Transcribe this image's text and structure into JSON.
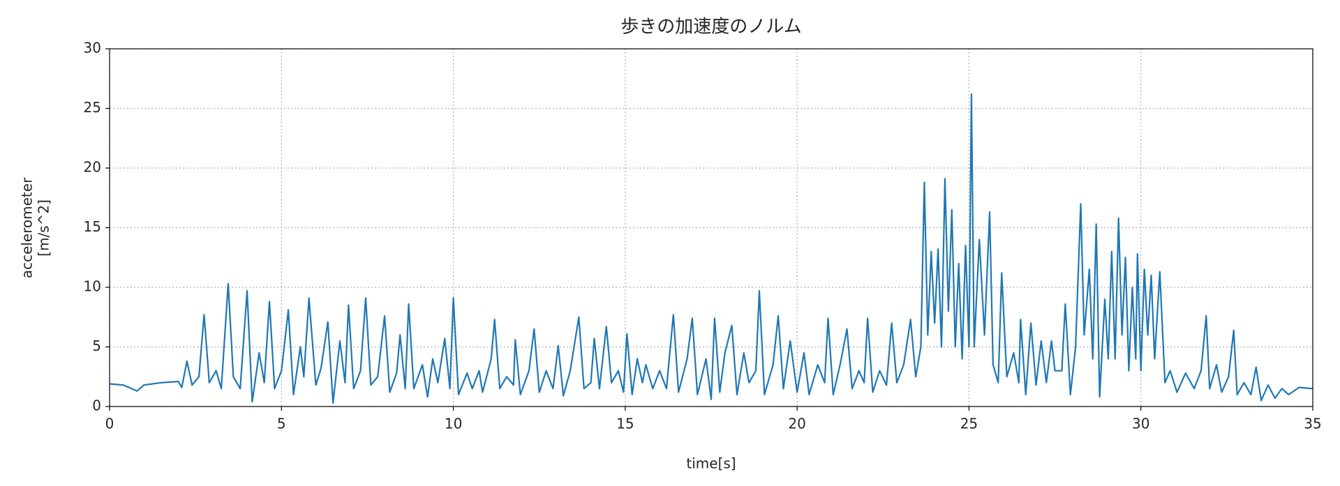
{
  "chart_data": {
    "type": "line",
    "title": "歩きの加速度のノルム",
    "xlabel": "time[s]",
    "ylabel": [
      "accelerometer",
      "[m/s^2]"
    ],
    "xlim": [
      0,
      35
    ],
    "xticks": [
      0,
      5,
      10,
      15,
      20,
      25,
      30,
      35
    ],
    "ylim": [
      0,
      30
    ],
    "yticks": [
      0,
      5,
      10,
      15,
      20,
      25,
      30
    ],
    "grid": true,
    "series": [
      {
        "color": "#1f77b4",
        "x": [
          0,
          0.4,
          0.8,
          1.0,
          1.5,
          2.0,
          2.1,
          2.25,
          2.4,
          2.6,
          2.75,
          2.9,
          3.1,
          3.25,
          3.45,
          3.6,
          3.8,
          4.0,
          4.15,
          4.35,
          4.5,
          4.65,
          4.8,
          5.0,
          5.2,
          5.35,
          5.55,
          5.65,
          5.8,
          6.0,
          6.15,
          6.35,
          6.5,
          6.7,
          6.85,
          6.95,
          7.1,
          7.3,
          7.45,
          7.6,
          7.8,
          8.0,
          8.15,
          8.35,
          8.45,
          8.6,
          8.7,
          8.85,
          9.1,
          9.25,
          9.4,
          9.55,
          9.75,
          9.9,
          10.0,
          10.15,
          10.4,
          10.55,
          10.75,
          10.85,
          11.1,
          11.2,
          11.35,
          11.55,
          11.75,
          11.8,
          11.95,
          12.2,
          12.35,
          12.5,
          12.7,
          12.9,
          13.05,
          13.2,
          13.4,
          13.65,
          13.8,
          14.0,
          14.1,
          14.25,
          14.45,
          14.6,
          14.8,
          14.95,
          15.05,
          15.2,
          15.35,
          15.5,
          15.6,
          15.8,
          16.0,
          16.2,
          16.4,
          16.55,
          16.8,
          16.95,
          17.1,
          17.35,
          17.5,
          17.6,
          17.75,
          17.9,
          18.1,
          18.25,
          18.45,
          18.6,
          18.8,
          18.9,
          19.05,
          19.3,
          19.45,
          19.6,
          19.8,
          20.0,
          20.2,
          20.35,
          20.6,
          20.8,
          20.9,
          21.05,
          21.25,
          21.45,
          21.6,
          21.8,
          21.95,
          22.05,
          22.2,
          22.4,
          22.6,
          22.75,
          22.9,
          23.1,
          23.3,
          23.45,
          23.6,
          23.7,
          23.8,
          23.9,
          24.0,
          24.1,
          24.2,
          24.3,
          24.4,
          24.5,
          24.6,
          24.7,
          24.8,
          24.9,
          25.0,
          25.07,
          25.15,
          25.3,
          25.45,
          25.6,
          25.7,
          25.85,
          25.95,
          26.1,
          26.3,
          26.45,
          26.5,
          26.65,
          26.8,
          26.95,
          27.1,
          27.25,
          27.4,
          27.5,
          27.7,
          27.8,
          27.95,
          28.1,
          28.25,
          28.35,
          28.5,
          28.6,
          28.7,
          28.8,
          28.95,
          29.05,
          29.15,
          29.25,
          29.35,
          29.45,
          29.55,
          29.65,
          29.75,
          29.85,
          29.9,
          30.0,
          30.1,
          30.2,
          30.3,
          30.4,
          30.55,
          30.7,
          30.85,
          31.05,
          31.3,
          31.55,
          31.75,
          31.9,
          32.0,
          32.2,
          32.35,
          32.55,
          32.7,
          32.8,
          33.0,
          33.2,
          33.35,
          33.5,
          33.7,
          33.9,
          34.1,
          34.3,
          34.6,
          35.0
        ],
        "values": [
          1.9,
          1.8,
          1.3,
          1.8,
          2.0,
          2.1,
          1.6,
          3.8,
          1.8,
          2.5,
          7.7,
          2.0,
          3.0,
          1.5,
          10.3,
          2.5,
          1.5,
          9.7,
          0.4,
          4.5,
          2.0,
          8.8,
          1.5,
          3.0,
          8.1,
          1.0,
          5.0,
          2.5,
          9.1,
          1.8,
          3.2,
          7.1,
          0.3,
          5.5,
          2.0,
          8.5,
          1.5,
          3.0,
          9.1,
          1.8,
          2.5,
          7.6,
          1.2,
          2.8,
          6.0,
          1.5,
          8.6,
          1.5,
          3.5,
          0.8,
          4.0,
          2.0,
          5.7,
          1.5,
          9.1,
          1.0,
          2.8,
          1.5,
          3.0,
          1.2,
          4.0,
          7.3,
          1.5,
          2.5,
          1.8,
          5.6,
          1.0,
          3.0,
          6.5,
          1.2,
          3.0,
          1.5,
          5.1,
          0.9,
          3.0,
          7.5,
          1.5,
          2.0,
          5.7,
          1.5,
          6.7,
          2.0,
          3.0,
          1.2,
          6.1,
          1.0,
          4.0,
          2.0,
          3.5,
          1.5,
          3.0,
          1.5,
          7.7,
          1.2,
          4.0,
          7.4,
          1.0,
          4.0,
          0.6,
          7.4,
          1.2,
          4.5,
          6.8,
          1.0,
          4.5,
          2.0,
          3.0,
          9.7,
          1.0,
          3.5,
          7.6,
          1.5,
          5.5,
          1.2,
          4.5,
          1.0,
          3.5,
          2.0,
          7.4,
          1.0,
          3.5,
          6.5,
          1.5,
          3.0,
          2.0,
          7.4,
          1.2,
          3.0,
          1.8,
          7.0,
          2.0,
          3.5,
          7.3,
          2.5,
          5.0,
          18.8,
          6.0,
          13.0,
          7.0,
          13.2,
          5.0,
          19.1,
          8.0,
          16.5,
          5.0,
          12.0,
          4.0,
          13.5,
          5.0,
          26.2,
          5.0,
          14.0,
          6.0,
          16.3,
          3.5,
          2.0,
          11.2,
          2.5,
          4.5,
          2.0,
          7.3,
          1.0,
          7.0,
          1.8,
          5.5,
          2.0,
          5.5,
          3.0,
          3.0,
          8.6,
          1.0,
          5.0,
          17.0,
          6.0,
          11.5,
          4.0,
          15.3,
          0.8,
          9.0,
          4.0,
          13.0,
          4.0,
          15.8,
          6.0,
          12.5,
          3.0,
          10.0,
          4.0,
          12.8,
          3.0,
          11.5,
          6.0,
          11.0,
          4.0,
          11.3,
          2.0,
          3.0,
          1.2,
          2.8,
          1.5,
          3.0,
          7.6,
          1.5,
          3.5,
          1.2,
          2.5,
          6.4,
          1.0,
          2.0,
          1.0,
          3.3,
          0.5,
          1.8,
          0.7,
          1.5,
          1.0,
          1.6,
          1.5
        ]
      }
    ]
  }
}
